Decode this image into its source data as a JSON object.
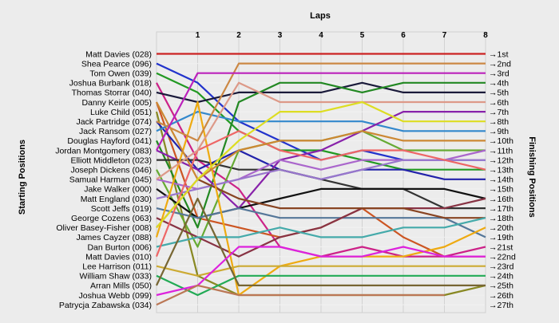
{
  "chart_data": {
    "type": "line",
    "title": "Laps",
    "ylabel_left": "Starting Positions",
    "ylabel_right": "Finishing Positions",
    "x": [
      0,
      1,
      2,
      3,
      4,
      5,
      6,
      7,
      8
    ],
    "x_tick_labels": [
      "1",
      "2",
      "3",
      "4",
      "5",
      "6",
      "7",
      "8"
    ],
    "grid": true,
    "starting_labels": [
      "Matt Davies (028)",
      "Shea Pearce (096)",
      "Tom Owen (039)",
      "Joshua Burbank (018)",
      "Thomas Storrar (040)",
      "Danny Keirle (005)",
      "Luke Child (051)",
      "Jack Partridge (074)",
      "Jack Ransom (027)",
      "Douglas Hayford (041)",
      "Jordan Montgomery (083)",
      "Elliott Middleton (023)",
      "Joseph Dickens (046)",
      "Samual Harman (045)",
      "Jake Walker (000)",
      "Matt England (030)",
      "Scott Jeffs (019)",
      "George Cozens (063)",
      "Oliver Basey-Fisher (008)",
      "James Cayzer (088)",
      "Dan Burton (006)",
      "Matt Davies (010)",
      "Lee Harrison (011)",
      "William Shaw (033)",
      "Arran Mills (050)",
      "Joshua Webb (099)",
      "Patrycja Zabawska (034)"
    ],
    "finishing_labels": [
      "1st",
      "2nd",
      "3rd",
      "4th",
      "5th",
      "6th",
      "7th",
      "8th",
      "9th",
      "10th",
      "11th",
      "12th",
      "13th",
      "14th",
      "15th",
      "16th",
      "17th",
      "18th",
      "20th",
      "19th",
      "21st",
      "22nd",
      "23rd",
      "24th",
      "25th",
      "26th",
      "27th"
    ],
    "series": [
      {
        "color": "#cc2222",
        "positions": [
          1,
          1,
          1,
          1,
          1,
          1,
          1,
          1,
          1
        ]
      },
      {
        "color": "#2233cc",
        "positions": [
          2,
          4,
          8,
          10,
          12,
          11,
          12,
          12,
          12
        ]
      },
      {
        "color": "#229922",
        "positions": [
          3,
          5,
          9,
          11,
          11,
          12,
          13,
          13,
          13
        ]
      },
      {
        "color": "#cc2288",
        "positions": [
          4,
          12,
          15,
          21,
          22,
          21,
          22,
          22,
          21
        ]
      },
      {
        "color": "#1a1a3a",
        "positions": [
          5,
          6,
          5,
          5,
          5,
          4,
          5,
          5,
          5
        ]
      },
      {
        "color": "#cc5522",
        "positions": [
          6,
          18,
          19,
          20,
          19,
          17,
          20,
          22,
          22
        ]
      },
      {
        "color": "#888822",
        "positions": [
          7,
          24,
          26,
          26,
          26,
          26,
          26,
          26,
          25
        ]
      },
      {
        "color": "#2222aa",
        "positions": [
          8,
          13,
          11,
          13,
          14,
          13,
          13,
          14,
          14
        ]
      },
      {
        "color": "#3388cc",
        "positions": [
          9,
          7,
          8,
          8,
          8,
          8,
          9,
          9,
          9
        ]
      },
      {
        "color": "#228822",
        "positions": [
          10,
          19,
          6,
          4,
          4,
          5,
          4,
          4,
          4
        ]
      },
      {
        "color": "#8822aa",
        "positions": [
          11,
          13,
          17,
          12,
          11,
          9,
          7,
          7,
          7
        ]
      },
      {
        "color": "#333333",
        "positions": [
          12,
          12,
          13,
          13,
          14,
          15,
          15,
          17,
          17
        ]
      },
      {
        "color": "#66aa33",
        "positions": [
          13,
          21,
          11,
          10,
          10,
          9,
          11,
          11,
          11
        ]
      },
      {
        "color": "#aa66cc",
        "positions": [
          14,
          15,
          14,
          12,
          13,
          12,
          12,
          12,
          11
        ]
      },
      {
        "color": "#111111",
        "positions": [
          15,
          18,
          17,
          16,
          15,
          15,
          15,
          15,
          16
        ]
      },
      {
        "color": "#9977cc",
        "positions": [
          16,
          15,
          14,
          13,
          14,
          13,
          12,
          12,
          12
        ]
      },
      {
        "color": "#557799",
        "positions": [
          17,
          18,
          17,
          18,
          18,
          18,
          18,
          18,
          20
        ]
      },
      {
        "color": "#883344",
        "positions": [
          18,
          20,
          22,
          20,
          19,
          17,
          17,
          17,
          16
        ]
      },
      {
        "color": "#884422",
        "positions": [
          19,
          14,
          16,
          17,
          17,
          17,
          17,
          18,
          18
        ]
      },
      {
        "color": "#eeaa11",
        "positions": [
          20,
          6,
          26,
          23,
          22,
          22,
          22,
          21,
          19
        ]
      },
      {
        "color": "#44aaaa",
        "positions": [
          21,
          20,
          20,
          19,
          20,
          20,
          19,
          19,
          18
        ]
      },
      {
        "color": "#ee6666",
        "positions": [
          22,
          11,
          9,
          11,
          12,
          11,
          11,
          12,
          13
        ]
      },
      {
        "color": "#ccaa33",
        "positions": [
          23,
          24,
          23,
          23,
          23,
          23,
          23,
          23,
          23
        ]
      },
      {
        "color": "#22aa55",
        "positions": [
          24,
          26,
          24,
          24,
          24,
          24,
          24,
          24,
          24
        ]
      },
      {
        "color": "#776633",
        "positions": [
          25,
          16,
          25,
          25,
          25,
          25,
          25,
          25,
          25
        ]
      },
      {
        "color": "#dd22dd",
        "positions": [
          26,
          25,
          21,
          21,
          22,
          22,
          21,
          22,
          22
        ]
      },
      {
        "color": "#bb7755",
        "positions": [
          27,
          25,
          26,
          26,
          26,
          26,
          26,
          26
        ]
      },
      {
        "color": "#cc8833",
        "positions": [
          6,
          14,
          11,
          10,
          10,
          9,
          10,
          10,
          10
        ]
      },
      {
        "color": "#dd9988",
        "positions": [
          14,
          11,
          4,
          6,
          6,
          6,
          6,
          6,
          6
        ]
      },
      {
        "color": "#dddd22",
        "positions": [
          19,
          14,
          10,
          7,
          7,
          6,
          8,
          8,
          8
        ]
      },
      {
        "color": "#cc8844",
        "positions": [
          8,
          10,
          2,
          2,
          2,
          2,
          2,
          2,
          2
        ]
      },
      {
        "color": "#bb22bb",
        "positions": [
          11,
          3,
          3,
          3,
          3,
          3,
          3,
          3,
          3
        ]
      }
    ]
  }
}
